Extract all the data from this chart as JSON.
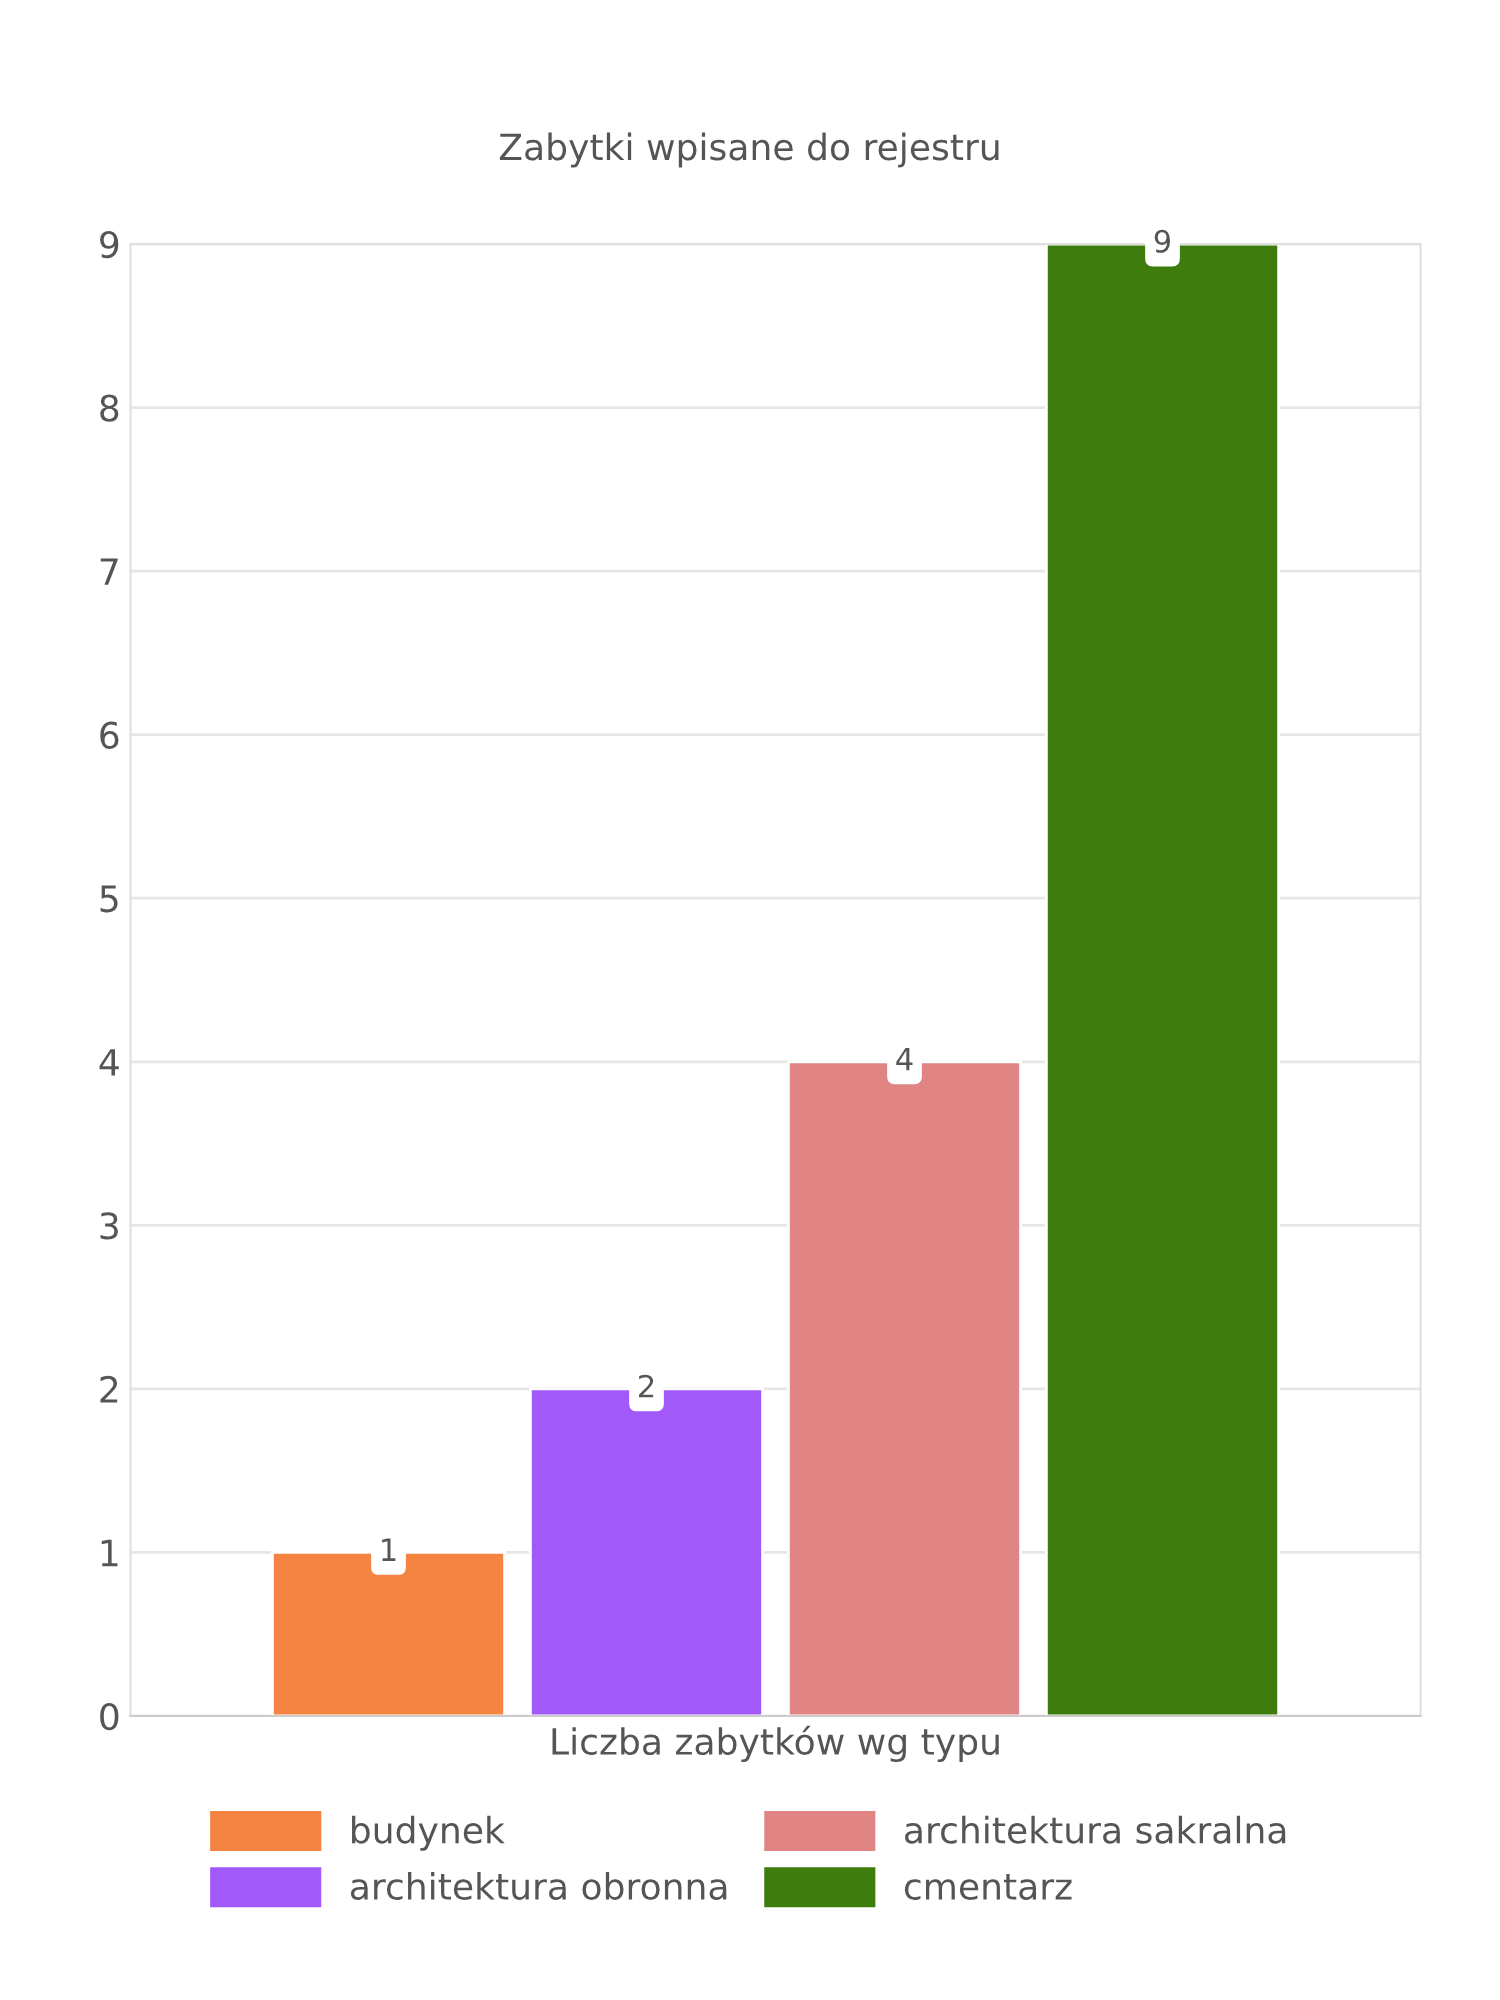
{
  "chart_data": {
    "type": "bar",
    "title": "Zabytki wpisane do rejestru",
    "categories": [
      "Liczba zabytków wg typu"
    ],
    "series": [
      {
        "name": "budynek",
        "color": "#f58442",
        "values": [
          1
        ]
      },
      {
        "name": "architektura obronna",
        "color": "#a259fa",
        "values": [
          2
        ]
      },
      {
        "name": "architektura sakralna",
        "color": "#e08484",
        "values": [
          4
        ]
      },
      {
        "name": "cmentarz",
        "color": "#3e7d0d",
        "values": [
          9
        ]
      }
    ],
    "ylim": [
      0,
      9
    ],
    "yticks": [
      0,
      1,
      2,
      3,
      4,
      5,
      6,
      7,
      8,
      9
    ],
    "grid": "y",
    "legend": "bottom",
    "data_labels": true
  }
}
